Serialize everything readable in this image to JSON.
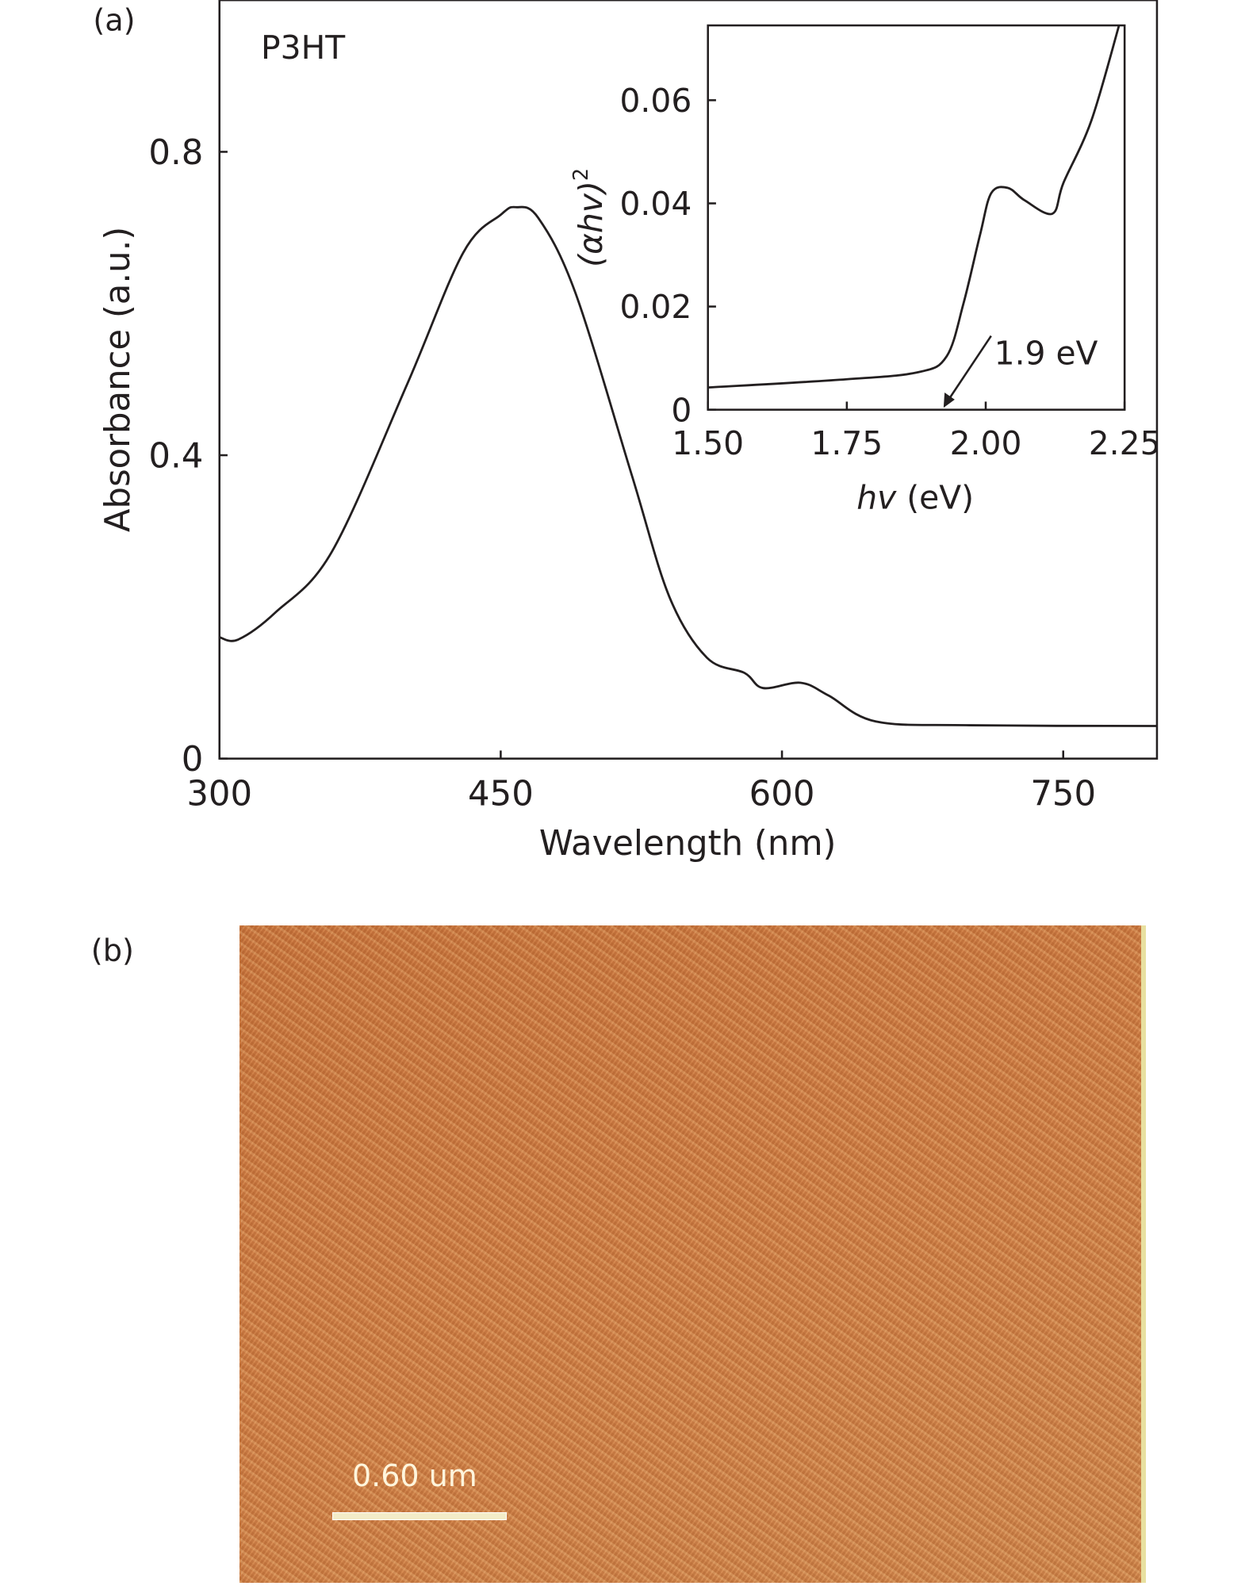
{
  "panel_a_label": "(a)",
  "panel_b_label": "(b)",
  "chart_data": [
    {
      "type": "line",
      "annotation": "P3HT",
      "xlabel": "Wavelength (nm)",
      "ylabel": "Absorbance (a.u.)",
      "xlim": [
        300,
        800
      ],
      "ylim": [
        0,
        1.0
      ],
      "xticks": [
        300,
        450,
        600,
        750
      ],
      "yticks": [
        0,
        0.4,
        0.8
      ],
      "xtick_labels": [
        "300",
        "450",
        "600",
        "750"
      ],
      "ytick_labels": [
        "0",
        "0.4",
        "0.8"
      ],
      "grid": false,
      "x": [
        300,
        310,
        330,
        360,
        400,
        430,
        450,
        458,
        470,
        490,
        520,
        540,
        560,
        580,
        590,
        610,
        625,
        650,
        700,
        800
      ],
      "y": [
        0.16,
        0.157,
        0.193,
        0.273,
        0.493,
        0.667,
        0.717,
        0.727,
        0.713,
        0.613,
        0.373,
        0.213,
        0.133,
        0.113,
        0.093,
        0.1,
        0.083,
        0.049,
        0.044,
        0.043
      ]
    },
    {
      "type": "line",
      "inset": true,
      "xlabel_italic": "hv",
      "xlabel_unit": "(eV)",
      "ylabel": "(αhv)",
      "ylabel_sup": "2",
      "xlim": [
        1.5,
        2.25
      ],
      "ylim": [
        0,
        0.0745
      ],
      "xticks": [
        1.5,
        1.75,
        2.0,
        2.25
      ],
      "yticks": [
        0,
        0.02,
        0.04,
        0.06
      ],
      "xtick_labels": [
        "1.50",
        "1.75",
        "2.00",
        "2.25"
      ],
      "ytick_labels": [
        "0",
        "0.02",
        "0.04",
        "0.06"
      ],
      "grid": false,
      "x": [
        1.5,
        1.75,
        1.88,
        1.93,
        1.96,
        1.99,
        2.01,
        2.04,
        2.07,
        2.12,
        2.14,
        2.19,
        2.24
      ],
      "y": [
        0.0043,
        0.0059,
        0.0073,
        0.0104,
        0.0206,
        0.034,
        0.042,
        0.043,
        0.0406,
        0.038,
        0.044,
        0.056,
        0.0745
      ],
      "arrow_annotation": {
        "text": "1.9 eV",
        "x": 1.9
      }
    }
  ],
  "afm_image": {
    "scale_bar_label": "0.60 um",
    "color": "#cd7d45"
  }
}
